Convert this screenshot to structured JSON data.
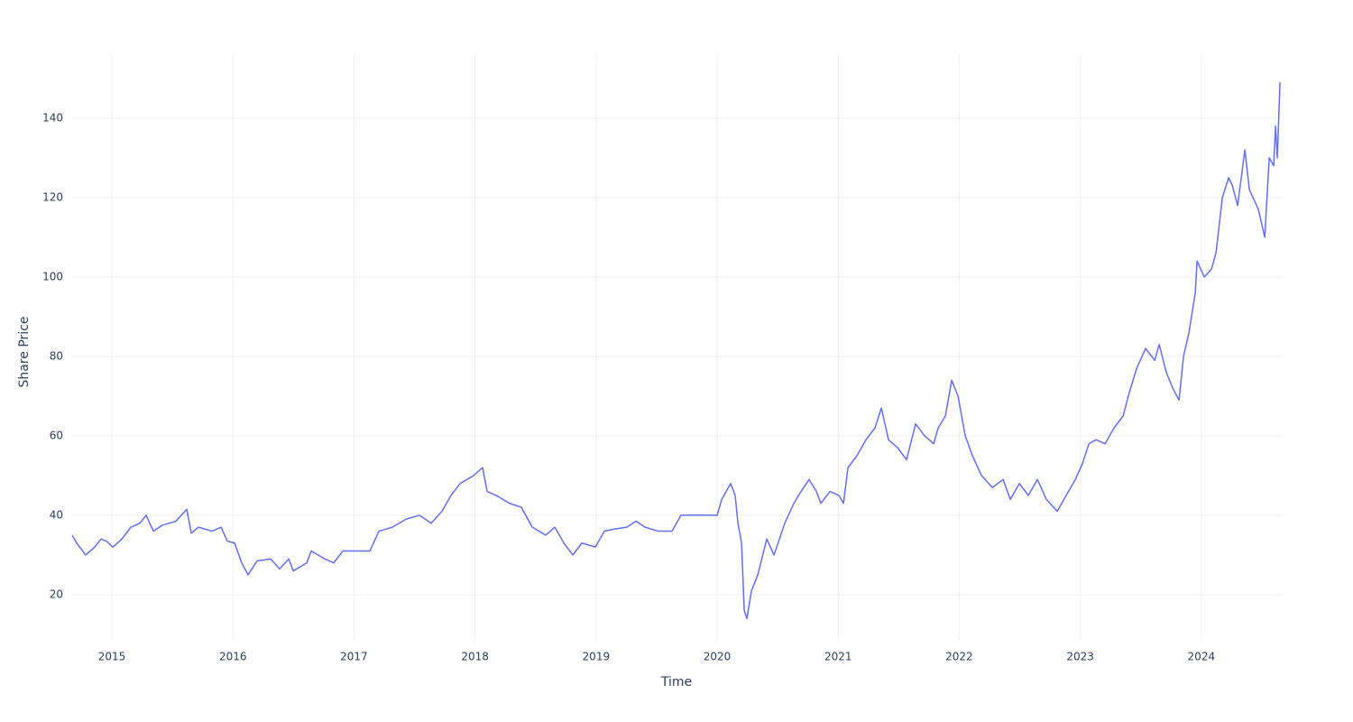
{
  "chart_data": {
    "type": "line",
    "x_label": "Time",
    "y_label": "Share Price",
    "xlim": [
      2014.672,
      2024.657
    ],
    "ylim": [
      8.4,
      156.1
    ],
    "xticks": [
      2015,
      2016,
      2017,
      2018,
      2019,
      2020,
      2021,
      2022,
      2023,
      2024
    ],
    "yticks": [
      20,
      40,
      60,
      80,
      100,
      120,
      140
    ],
    "grid": true,
    "series": [
      {
        "color": "#636efa",
        "x": [
          2014.672,
          2014.709,
          2014.784,
          2014.858,
          2014.911,
          2014.955,
          2015.008,
          2015.082,
          2015.157,
          2015.231,
          2015.283,
          2015.343,
          2015.417,
          2015.529,
          2015.619,
          2015.656,
          2015.715,
          2015.827,
          2015.902,
          2015.954,
          2016.014,
          2016.073,
          2016.125,
          2016.2,
          2016.312,
          2016.386,
          2016.461,
          2016.498,
          2016.61,
          2016.647,
          2016.759,
          2016.833,
          2016.908,
          2017.02,
          2017.131,
          2017.206,
          2017.318,
          2017.429,
          2017.541,
          2017.638,
          2017.727,
          2017.802,
          2017.877,
          2017.988,
          2018.063,
          2018.1,
          2018.175,
          2018.286,
          2018.383,
          2018.473,
          2018.584,
          2018.659,
          2018.734,
          2018.808,
          2018.883,
          2018.994,
          2019.069,
          2019.143,
          2019.255,
          2019.33,
          2019.404,
          2019.516,
          2019.628,
          2019.702,
          2019.814,
          2019.926,
          2020.0,
          2020.038,
          2020.112,
          2020.149,
          2020.172,
          2020.202,
          2020.224,
          2020.246,
          2020.284,
          2020.336,
          2020.41,
          2020.47,
          2020.559,
          2020.634,
          2020.693,
          2020.76,
          2020.82,
          2020.857,
          2020.932,
          2021.006,
          2021.044,
          2021.081,
          2021.155,
          2021.23,
          2021.304,
          2021.357,
          2021.416,
          2021.491,
          2021.565,
          2021.64,
          2021.714,
          2021.789,
          2021.826,
          2021.886,
          2021.938,
          2021.99,
          2022.05,
          2022.109,
          2022.184,
          2022.273,
          2022.363,
          2022.422,
          2022.497,
          2022.571,
          2022.646,
          2022.72,
          2022.81,
          2022.884,
          2022.959,
          2023.018,
          2023.071,
          2023.13,
          2023.205,
          2023.279,
          2023.354,
          2023.406,
          2023.466,
          2023.54,
          2023.615,
          2023.652,
          2023.711,
          2023.764,
          2023.816,
          2023.853,
          2023.898,
          2023.95,
          2023.965,
          2024.025,
          2024.084,
          2024.121,
          2024.174,
          2024.226,
          2024.256,
          2024.3,
          2024.36,
          2024.397,
          2024.472,
          2024.524,
          2024.561,
          2024.598,
          2024.613,
          2024.628,
          2024.65
        ],
        "values": [
          35,
          33,
          30,
          32,
          34,
          33.5,
          32,
          34,
          37,
          38,
          40,
          36,
          37.5,
          38.5,
          41.5,
          35.5,
          37,
          36,
          37,
          33.5,
          33,
          28,
          25,
          28.5,
          29,
          26.5,
          29,
          26,
          28,
          31,
          29,
          28,
          31,
          31,
          31,
          36,
          37,
          39,
          40,
          38,
          41,
          45,
          48,
          50,
          52,
          46,
          45,
          43,
          42,
          37,
          35,
          37,
          33,
          30,
          33,
          32,
          36,
          36.5,
          37,
          38.5,
          37,
          36,
          36,
          40,
          40,
          40,
          40,
          44,
          48,
          45,
          38,
          33,
          16,
          14,
          21,
          25,
          34,
          30,
          38,
          43,
          46,
          49,
          46,
          43,
          46,
          45,
          43,
          52,
          55,
          59,
          62,
          67,
          59,
          57,
          54,
          63,
          60,
          58,
          62,
          65,
          74,
          70,
          60,
          55,
          50,
          47,
          49,
          44,
          48,
          45,
          49,
          44,
          41,
          45,
          49,
          53,
          58,
          59,
          58,
          62,
          65,
          71,
          77,
          82,
          79,
          83,
          76,
          72,
          69,
          80,
          86,
          96,
          104,
          100,
          102,
          106,
          120,
          125,
          123,
          118,
          132,
          122,
          117,
          110,
          130,
          128,
          138,
          130,
          149
        ]
      }
    ]
  }
}
